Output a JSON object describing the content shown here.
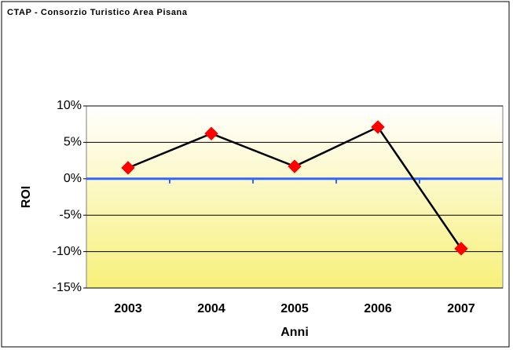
{
  "chart_data": {
    "type": "line",
    "title": "CTAP - Consorzio Turistico Area Pisana",
    "x_label": "Anni",
    "y_label": "ROI",
    "categories": [
      "2003",
      "2004",
      "2005",
      "2006",
      "2007"
    ],
    "values": [
      1.5,
      6.2,
      1.7,
      7.1,
      -9.6
    ],
    "color": "#000000",
    "marker_color": "#ff0000",
    "ylim": [
      -15,
      10
    ],
    "yticks": [
      {
        "value": -15,
        "label": "-15%"
      },
      {
        "value": -10,
        "label": "-10%"
      },
      {
        "value": -5,
        "label": "-5%"
      },
      {
        "value": 0,
        "label": "0%"
      },
      {
        "value": 5,
        "label": "5%"
      },
      {
        "value": 10,
        "label": "10%"
      }
    ],
    "grid": true
  }
}
